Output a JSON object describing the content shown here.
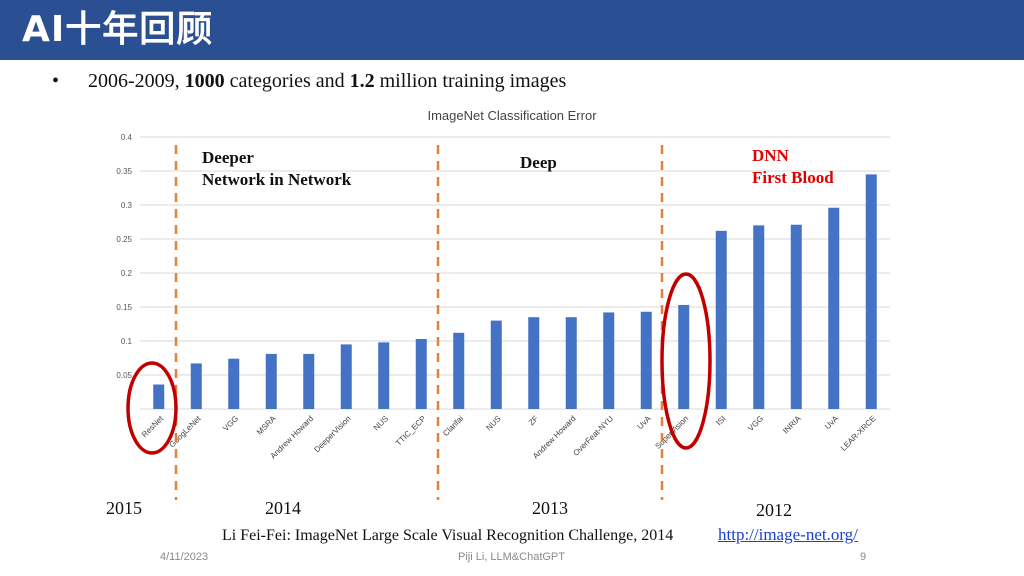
{
  "slide": {
    "title": "AI十年回顾",
    "bullet": {
      "marker": "•",
      "parts": [
        {
          "text": "2006-2009, ",
          "bold": false
        },
        {
          "text": "1000",
          "bold": true
        },
        {
          "text": " categories and ",
          "bold": false
        },
        {
          "text": "1.2",
          "bold": true
        },
        {
          "text": " million training images",
          "bold": false
        }
      ]
    },
    "annotations": {
      "deeper_1": "Deeper",
      "deeper_2": "Network in Network",
      "deep": "Deep",
      "dnn_1": "DNN",
      "dnn_2": "First Blood"
    },
    "years": {
      "y2015": "2015",
      "y2014": "2014",
      "y2013": "2013",
      "y2012": "2012"
    },
    "citation": "Li Fei-Fei: ImageNet Large Scale Visual Recognition Challenge, 2014",
    "link": "http://image-net.org/",
    "footer": {
      "date": "4/11/2023",
      "author": "Piji Li, LLM&ChatGPT",
      "page": "9"
    },
    "colors": {
      "title_bar": "#2b4f93",
      "bar": "#4472c4",
      "divider": "#ed7d31",
      "circle": "#c00000",
      "dnn_text": "#e00000"
    }
  },
  "chart_data": {
    "type": "bar",
    "title": "ImageNet Classification Error",
    "categories": [
      "ResNet",
      "GoogLeNet",
      "VGG",
      "MSRA",
      "Andrew Howard",
      "DeeperVision",
      "NUS",
      "TTIC_ECP",
      "Clarifai",
      "NUS",
      "ZF",
      "Andrew Howard",
      "OverFeat-NYU",
      "UvA",
      "SuperVision",
      "ISI",
      "VGG",
      "INRIA",
      "UvA",
      "LEAR-XRCE"
    ],
    "values": [
      0.036,
      0.067,
      0.074,
      0.081,
      0.081,
      0.095,
      0.098,
      0.103,
      0.112,
      0.13,
      0.135,
      0.135,
      0.142,
      0.143,
      0.153,
      0.262,
      0.27,
      0.271,
      0.296,
      0.345
    ],
    "ylim": [
      0,
      0.4
    ],
    "yticks": [
      "0.4",
      "0.35",
      "0.3",
      "0.25",
      "0.2",
      "0.15",
      "0.1",
      "0.05"
    ],
    "ytick_values": [
      0.4,
      0.35,
      0.3,
      0.25,
      0.2,
      0.15,
      0.1,
      0.05
    ],
    "grid": true
  }
}
